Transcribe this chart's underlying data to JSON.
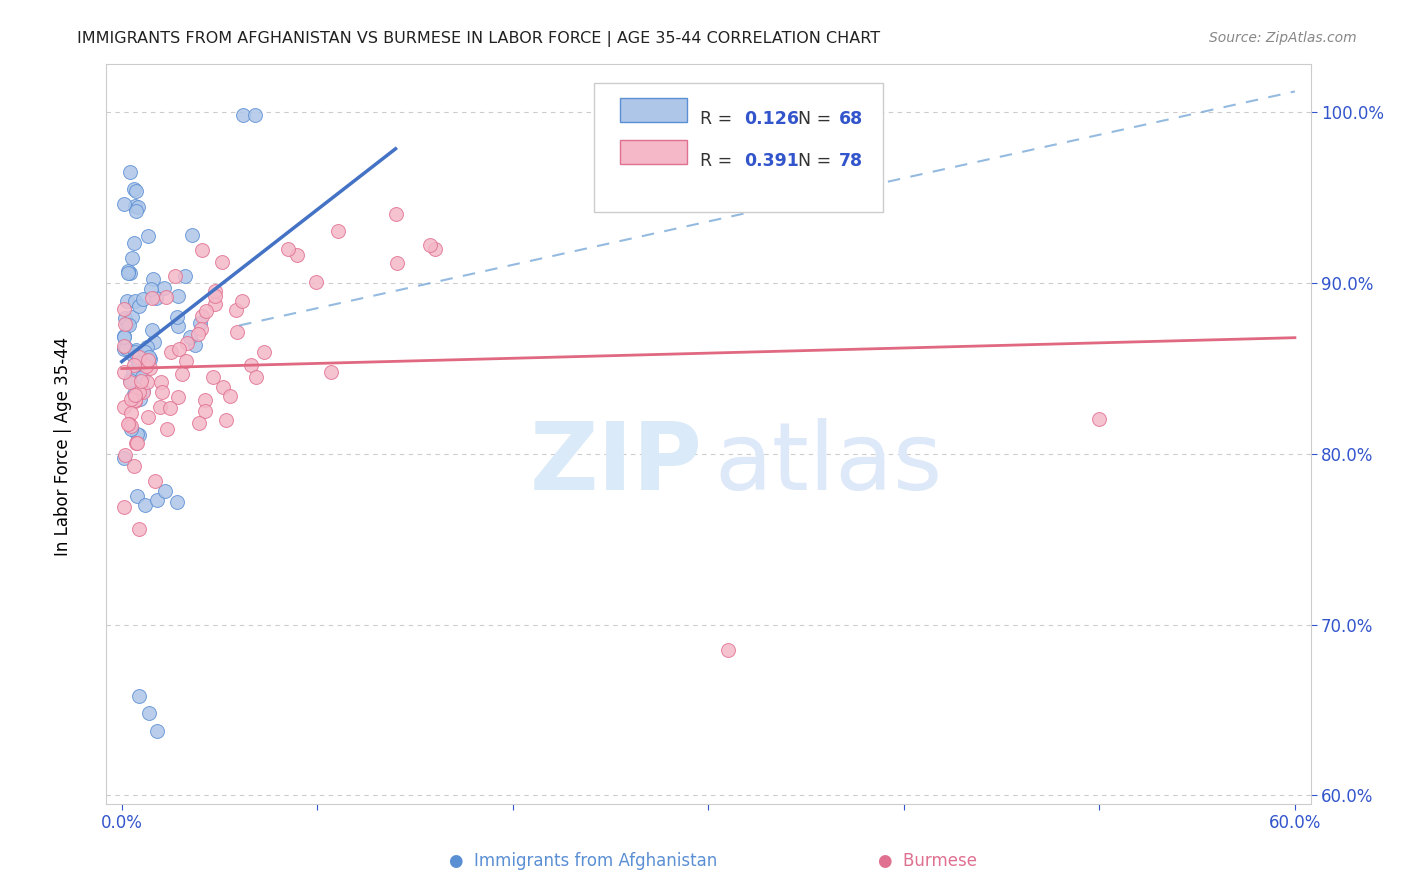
{
  "title": "IMMIGRANTS FROM AFGHANISTAN VS BURMESE IN LABOR FORCE | AGE 35-44 CORRELATION CHART",
  "source": "Source: ZipAtlas.com",
  "ylabel": "In Labor Force | Age 35-44",
  "legend_blue_r": "0.126",
  "legend_blue_n": "68",
  "legend_pink_r": "0.391",
  "legend_pink_n": "78",
  "blue_color": "#aec6e8",
  "blue_edge_color": "#5b8fd4",
  "blue_line_color": "#4472c4",
  "blue_dash_color": "#7aaad8",
  "pink_color": "#f4b8c8",
  "pink_edge_color": "#e07090",
  "pink_line_color": "#e06880",
  "axis_color": "#cccccc",
  "grid_color": "#cccccc",
  "tick_color": "#3355cc",
  "title_color": "#222222",
  "source_color": "#888888",
  "watermark_zip_color": "#daeaf8",
  "watermark_atlas_color": "#dde8f8"
}
